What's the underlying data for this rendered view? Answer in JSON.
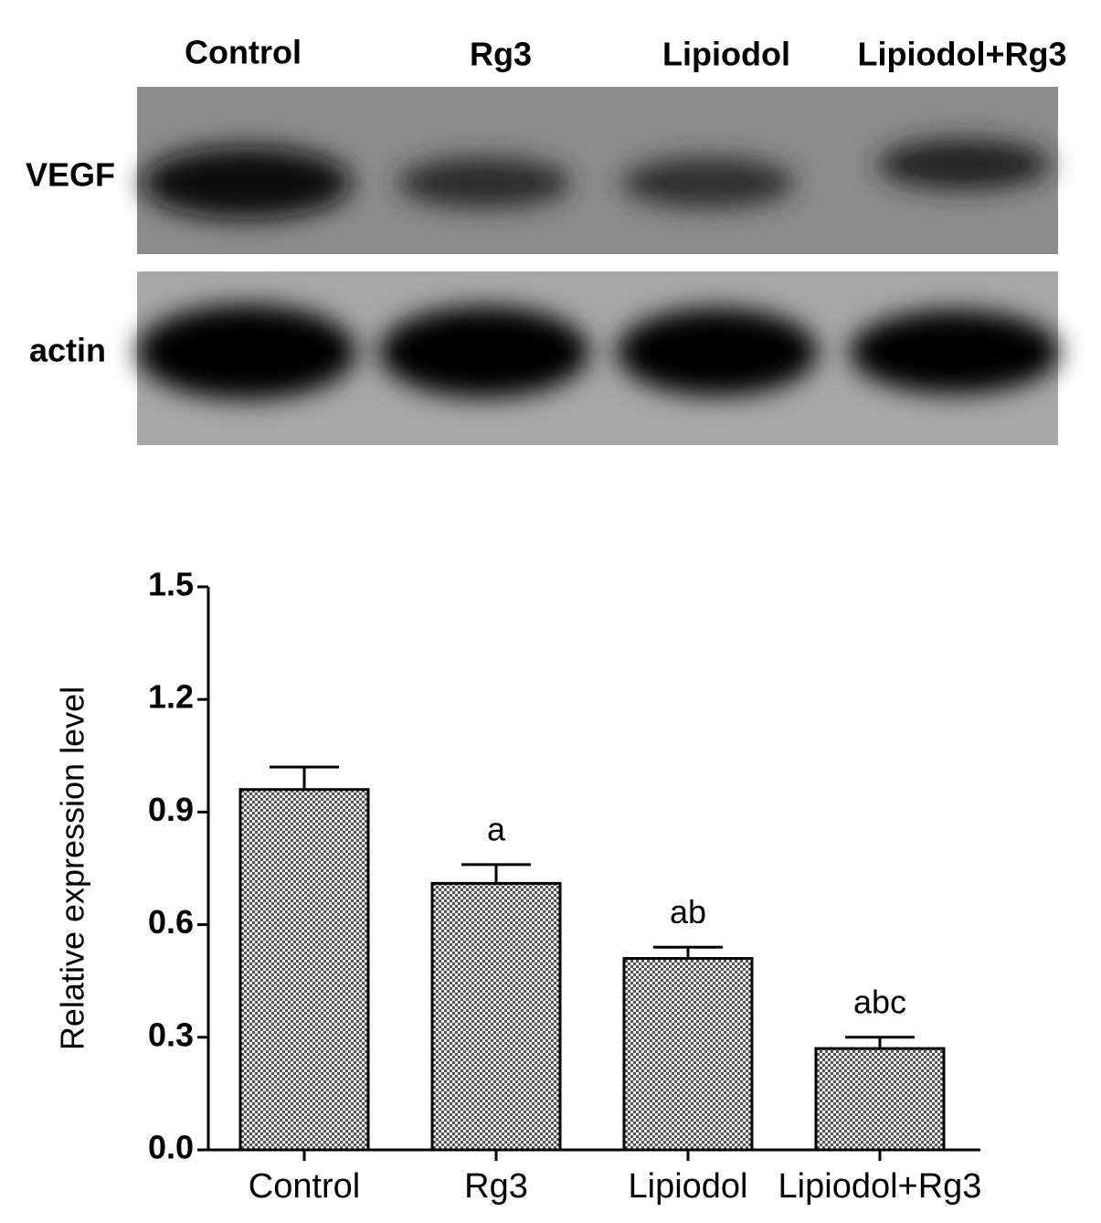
{
  "blot": {
    "lanes": [
      "Control",
      "Rg3",
      "Lipiodol",
      "Lipiodol+Rg3"
    ],
    "rows": [
      "VEGF",
      "actin"
    ]
  },
  "chart_data": {
    "type": "bar",
    "y_label": "Relative expression level",
    "categories": [
      "Control",
      "Rg3",
      "Lipiodol",
      "Lipiodol+Rg3"
    ],
    "values": [
      0.96,
      0.71,
      0.51,
      0.27
    ],
    "errors": [
      0.06,
      0.05,
      0.03,
      0.03
    ],
    "significance_labels": [
      null,
      "a",
      "ab",
      "abc"
    ],
    "color": "#9a9a9a",
    "ylim": [
      0,
      1.5
    ],
    "yticks": [
      {
        "value": 0,
        "label": "0.0"
      },
      0.3,
      0.6,
      0.9,
      1.2,
      1.5
    ],
    "grid": false
  }
}
